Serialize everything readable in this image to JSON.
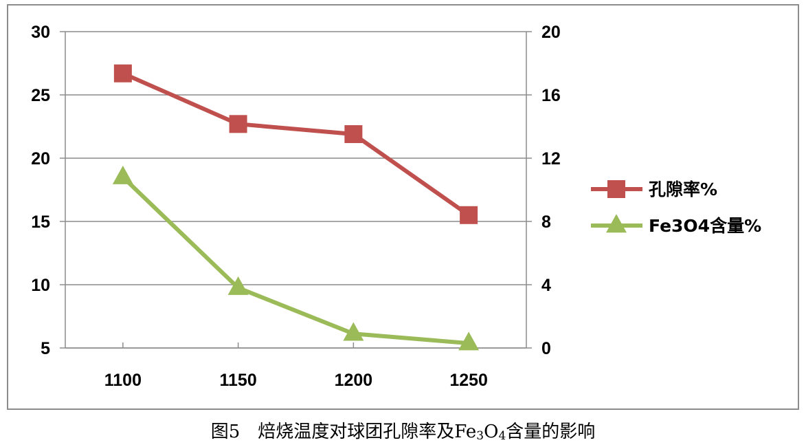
{
  "chart_data": {
    "type": "line",
    "x": [
      1100,
      1150,
      1200,
      1250
    ],
    "categories": [
      "1100",
      "1150",
      "1200",
      "1250"
    ],
    "left_axis": {
      "ylim": [
        5,
        30
      ],
      "ticks": [
        "5",
        "10",
        "15",
        "20",
        "25",
        "30"
      ]
    },
    "right_axis": {
      "ylim": [
        0,
        20
      ],
      "ticks": [
        "0",
        "4",
        "8",
        "12",
        "16",
        "20"
      ]
    },
    "grid": true,
    "legend_position": "right",
    "series": [
      {
        "name": "孔隙率%",
        "axis": "left",
        "marker": "square",
        "color": "#c0504d",
        "values": [
          26.7,
          22.7,
          21.9,
          15.5
        ]
      },
      {
        "name": "Fe3O4含量%",
        "axis": "right",
        "marker": "triangle",
        "color": "#9bbb59",
        "values": [
          10.8,
          3.8,
          0.9,
          0.3
        ]
      }
    ]
  },
  "caption": {
    "prefix": "图5　焙烧温度对球团孔隙率及Fe",
    "sub1": "3",
    "mid": "O",
    "sub2": "4",
    "suffix": "含量的影响"
  }
}
